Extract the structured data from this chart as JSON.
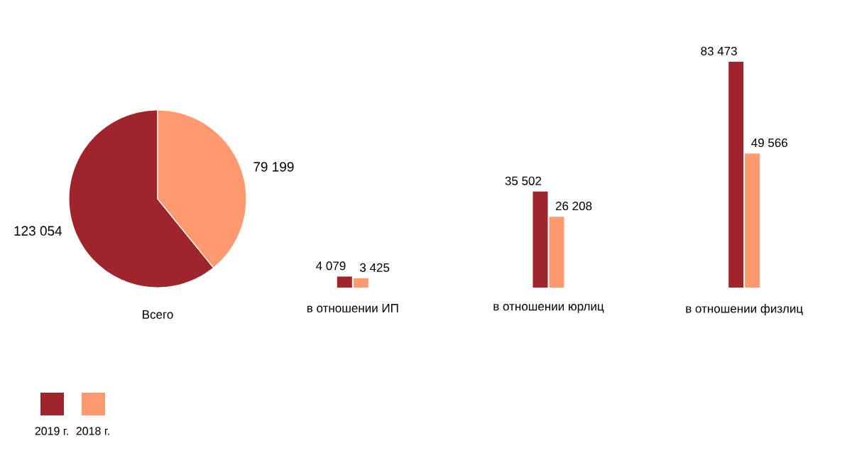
{
  "chart_data": [
    {
      "type": "pie",
      "xlabel": "Всего",
      "categories": [
        null,
        null
      ],
      "values": [
        123054,
        79199
      ],
      "colors": [
        "#a0242b",
        "#ff9a70"
      ],
      "value_labels": [
        "123 054",
        "79 199"
      ]
    },
    {
      "type": "bar",
      "categories": [
        "в отношении ИП",
        "в отношении юрлиц",
        "в отношении физлиц"
      ],
      "legend": "bottom left",
      "series": [
        {
          "name": "2019 г.",
          "color": "#a0242b",
          "values": [
            4079,
            35502,
            83473
          ],
          "value_labels": [
            "4 079",
            "35 502",
            "83 473"
          ]
        },
        {
          "name": "2018 г.",
          "color": "#ff9a70",
          "values": [
            3425,
            26208,
            49566
          ],
          "value_labels": [
            "3 425",
            "26 208",
            "49 566"
          ]
        }
      ]
    }
  ]
}
